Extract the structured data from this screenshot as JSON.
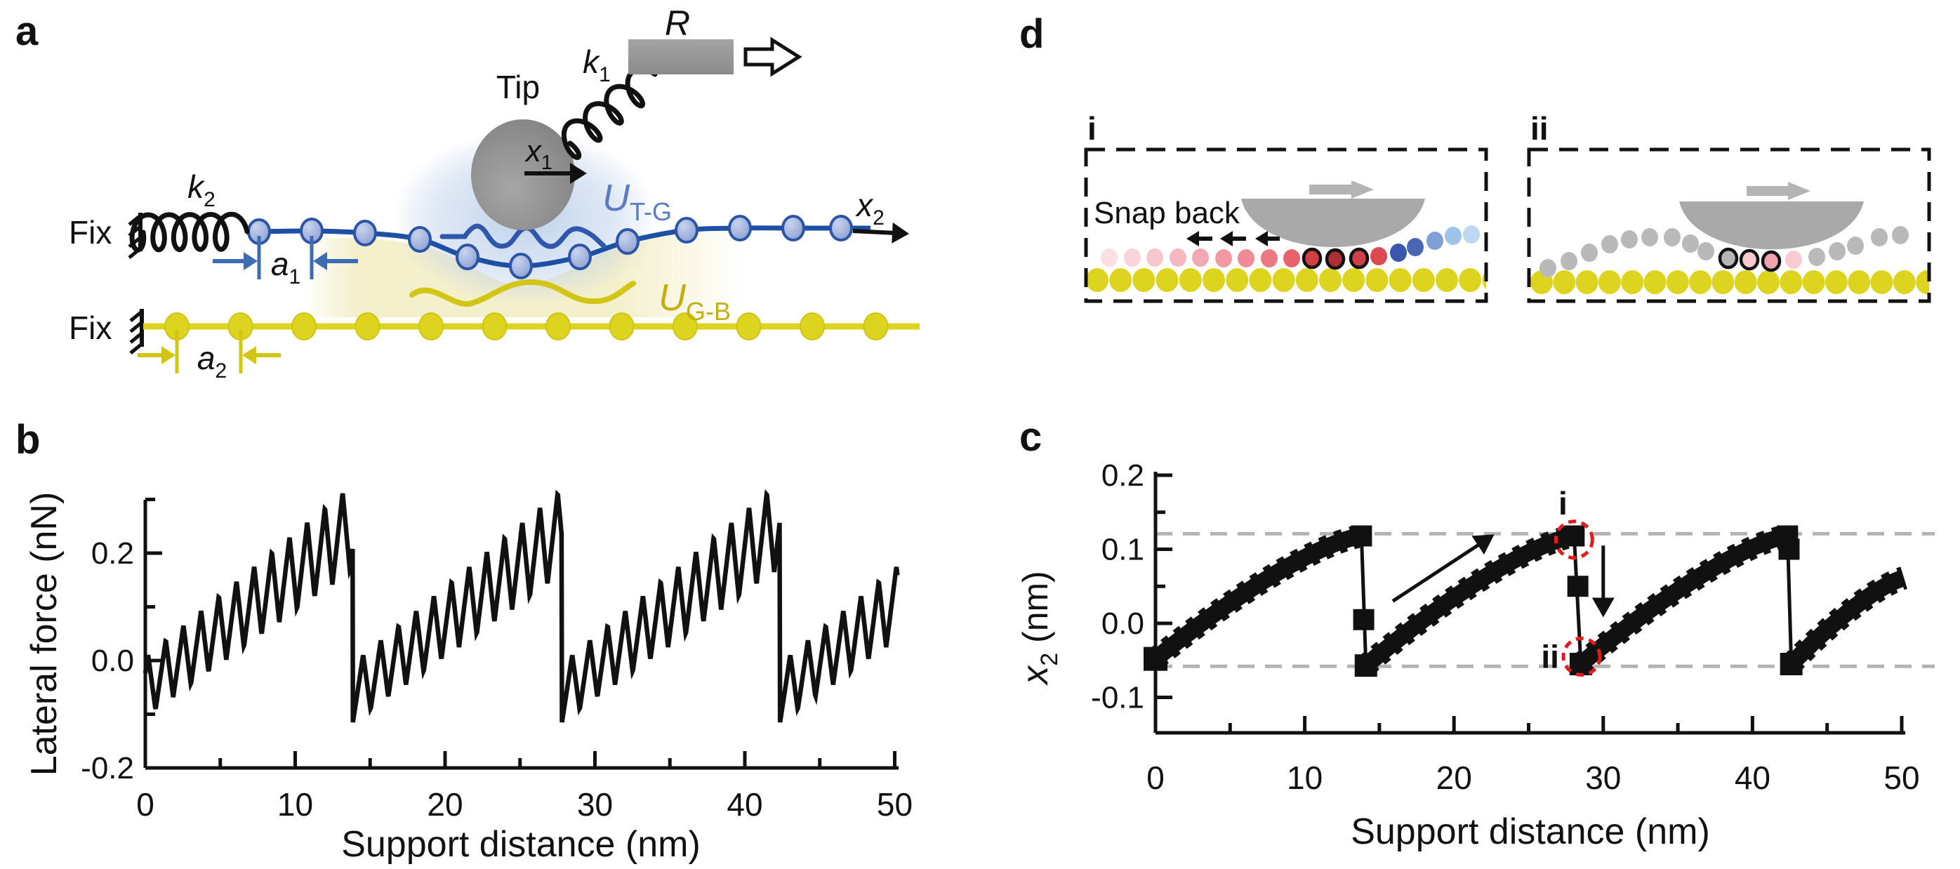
{
  "figure_labels": {
    "panel_a": "a",
    "panel_b": "b",
    "panel_c": "c",
    "panel_d": "d"
  },
  "colors": {
    "graphene_atom_fill": "#9cb0dc",
    "graphene_atom_stroke": "#2d54a5",
    "graphene_chain": "#1d4fa5",
    "dimension_blue": "#3e6cb4",
    "substrate_yellow": "#ddd41f",
    "dimension_yellow": "#d2c515",
    "label_utg": "#5b7cc0",
    "label_ugb": "#c2b013",
    "tip_gray": "#8b8b8b",
    "support_gray": "#969696",
    "contact_glow_blue": "#bcd0ea",
    "interface_glow_yellow": "#f4efc9",
    "snapshot_gray": "#b9b9b9",
    "snapshot_arrow_gray": "#b4b4b4",
    "annotation_red": "#e31c1c",
    "guide_dash_gray": "#b3b3b3",
    "ink": "#111111"
  },
  "schematic": {
    "tip_label": "Tip",
    "fix_top": "Fix",
    "fix_bottom": "Fix",
    "support_label": "R",
    "spring_top": {
      "main": "k",
      "sub": "1"
    },
    "spring_chain": {
      "main": "k",
      "sub": "2"
    },
    "tip_coord": {
      "main": "x",
      "sub": "1"
    },
    "chain_coord": {
      "main": "x",
      "sub": "2"
    },
    "lattice_top": {
      "main": "a",
      "sub": "1"
    },
    "lattice_bottom": {
      "main": "a",
      "sub": "2"
    },
    "potential_tip_graphene": {
      "main": "U",
      "sub": "T-G"
    },
    "potential_graphene_substrate": {
      "main": "U",
      "sub": "G-B"
    }
  },
  "snapshots": {
    "i": {
      "label": "i",
      "annotation": "Snap back",
      "tip_motion": "right",
      "chain_dots": [
        [
          1580,
          367,
          "#fadfe3",
          false
        ],
        [
          1613,
          367,
          "#f9d4da",
          false
        ],
        [
          1645,
          367,
          "#f7c6cd",
          false
        ],
        [
          1678,
          367,
          "#f5b8c0",
          false
        ],
        [
          1710,
          367,
          "#f2a9b2",
          false
        ],
        [
          1743,
          368,
          "#f09aa3",
          false
        ],
        [
          1775,
          368,
          "#ee8b95",
          false
        ],
        [
          1808,
          368,
          "#eb7983",
          false
        ],
        [
          1840,
          368,
          "#e7636c",
          false
        ],
        [
          1869,
          368,
          "#d24046",
          true
        ],
        [
          1902,
          369,
          "#ab2f33",
          true
        ],
        [
          1936,
          368,
          "#cf3f45",
          true
        ],
        [
          1964,
          365,
          "#dd4950",
          false
        ],
        [
          1992,
          360,
          "#3c56ab",
          false
        ],
        [
          2016,
          352,
          "#4b67b3",
          false
        ],
        [
          2044,
          343,
          "#7f9fd6",
          false
        ],
        [
          2070,
          336,
          "#9ec4e8",
          false
        ],
        [
          2096,
          334,
          "#bcd8f2",
          false
        ]
      ],
      "substrate_row": {
        "y": 399,
        "x_start": 1563,
        "count": 18,
        "spacing": 33.2
      }
    },
    "ii": {
      "label": "ii",
      "annotation": "",
      "tip_motion": "right",
      "chain_dots": [
        [
          2205,
          382,
          "#b9b9b9",
          false
        ],
        [
          2235,
          372,
          "#b9b9b9",
          false
        ],
        [
          2264,
          360,
          "#b9b9b9",
          false
        ],
        [
          2293,
          348,
          "#b9b9b9",
          false
        ],
        [
          2321,
          341,
          "#b9b9b9",
          false
        ],
        [
          2350,
          338,
          "#b9b9b9",
          false
        ],
        [
          2382,
          338,
          "#b9b9b9",
          false
        ],
        [
          2408,
          347,
          "#b9b9b9",
          false
        ],
        [
          2430,
          358,
          "#b9b9b9",
          false
        ],
        [
          2462,
          368,
          "#b5b5b5",
          true
        ],
        [
          2492,
          370,
          "#f7cad0",
          true
        ],
        [
          2523,
          372,
          "#f0a4ad",
          true
        ],
        [
          2555,
          370,
          "#f8ccd2",
          false
        ],
        [
          2588,
          366,
          "#b9b9b9",
          false
        ],
        [
          2617,
          358,
          "#b9b9b9",
          false
        ],
        [
          2643,
          350,
          "#b9b9b9",
          false
        ],
        [
          2677,
          338,
          "#b9b9b9",
          false
        ],
        [
          2707,
          335,
          "#b9b9b9",
          false
        ]
      ],
      "substrate_row": {
        "y": 402,
        "x_start": 2196,
        "count": 18,
        "spacing": 32.3
      }
    }
  },
  "chart_data": [
    {
      "type": "line",
      "panel": "b",
      "xlabel": "Support distance (nm)",
      "ylabel": "Lateral force (nN)",
      "xlim": [
        0,
        50
      ],
      "ylim": [
        -0.2,
        0.3
      ],
      "xticks": [
        0,
        10,
        20,
        30,
        40,
        50
      ],
      "xticks_minor": [
        5,
        15,
        25,
        35,
        45
      ],
      "yticks": [
        -0.2,
        0,
        0.2
      ],
      "ytick_labels": [
        "-0.2",
        "0.0",
        "0.2"
      ],
      "yticks_minor": [
        -0.1,
        0.1,
        0.3
      ],
      "grid": false,
      "line_color": "#111111",
      "stick_slip_signal": {
        "description": "atomic stick-slip sawtooth riding on rising load, released at large snap-back slips",
        "major_slip_positions_nm": [
          13.85,
          27.8,
          42.35
        ],
        "minor_tooth_period_nm": 1.18,
        "tooth_rise_fraction": 0.58,
        "cycle_base_start_nN": -0.06,
        "cycle_base_slope_nN_per_nm": 0.0215,
        "tooth_amplitude_start_nN": 0.11,
        "tooth_amplitude_growth_nN_per_nm": 0.0035,
        "first_cycle_phase_offset_nm": 0.5,
        "peak_force_nN": 0.29,
        "min_force_nN": -0.13
      }
    },
    {
      "type": "line",
      "panel": "c",
      "xlabel": "Support distance (nm)",
      "ylabel_math": {
        "main": "x",
        "sub": "2",
        "unit": " (nm)"
      },
      "xlim": [
        0,
        50
      ],
      "ylim": [
        -0.15,
        0.205
      ],
      "xticks": [
        0,
        10,
        20,
        30,
        40,
        50
      ],
      "xticks_minor": [
        5,
        15,
        25,
        35,
        45
      ],
      "yticks": [
        -0.1,
        0,
        0.1,
        0.2
      ],
      "ytick_labels": [
        "-0.1",
        "0.0",
        "0.1",
        "0.2"
      ],
      "yticks_minor": [
        -0.05,
        0.05,
        0.15
      ],
      "grid": false,
      "line_color": "#111111",
      "guide_levels_nm": [
        0.121,
        -0.058
      ],
      "ease_exponent": 1.35,
      "sawtooth_branches": [
        {
          "x_start": 0,
          "y_start": -0.048,
          "x_end": 13.8,
          "y_end": 0.118
        },
        {
          "x_start": 14.1,
          "y_start": -0.057,
          "x_end": 28.05,
          "y_end": 0.118
        },
        {
          "x_start": 28.5,
          "y_start": -0.055,
          "x_end": 42.35,
          "y_end": 0.118
        },
        {
          "x_start": 42.6,
          "y_start": -0.055,
          "x_end": 50.3,
          "y_end": 0.062
        }
      ],
      "slip_drops": [
        {
          "x_top": 13.8,
          "y_top": 0.118,
          "x_bottom": 14.1,
          "y_bottom": -0.057,
          "mid_points": [
            {
              "x": 13.95,
              "y": 0.005
            }
          ]
        },
        {
          "x_top": 28.05,
          "y_top": 0.118,
          "x_bottom": 28.5,
          "y_bottom": -0.055,
          "mid_points": [
            {
              "x": 28.3,
              "y": 0.05
            }
          ]
        },
        {
          "x_top": 42.35,
          "y_top": 0.118,
          "x_bottom": 42.6,
          "y_bottom": -0.055,
          "mid_points": [
            {
              "x": 42.45,
              "y": 0.1
            }
          ]
        }
      ],
      "annotations": {
        "state_i_label": "i",
        "state_ii_label": "ii",
        "state_i_point": {
          "x": 28.05,
          "y": 0.113
        },
        "state_ii_point": {
          "x": 28.55,
          "y": -0.045
        },
        "loading_arrow": {
          "x1": 15.9,
          "y1": 0.03,
          "x2": 22.7,
          "y2": 0.12
        },
        "slip_arrow": {
          "x": 30.0,
          "y1": 0.105,
          "y2": 0.008
        }
      }
    }
  ]
}
